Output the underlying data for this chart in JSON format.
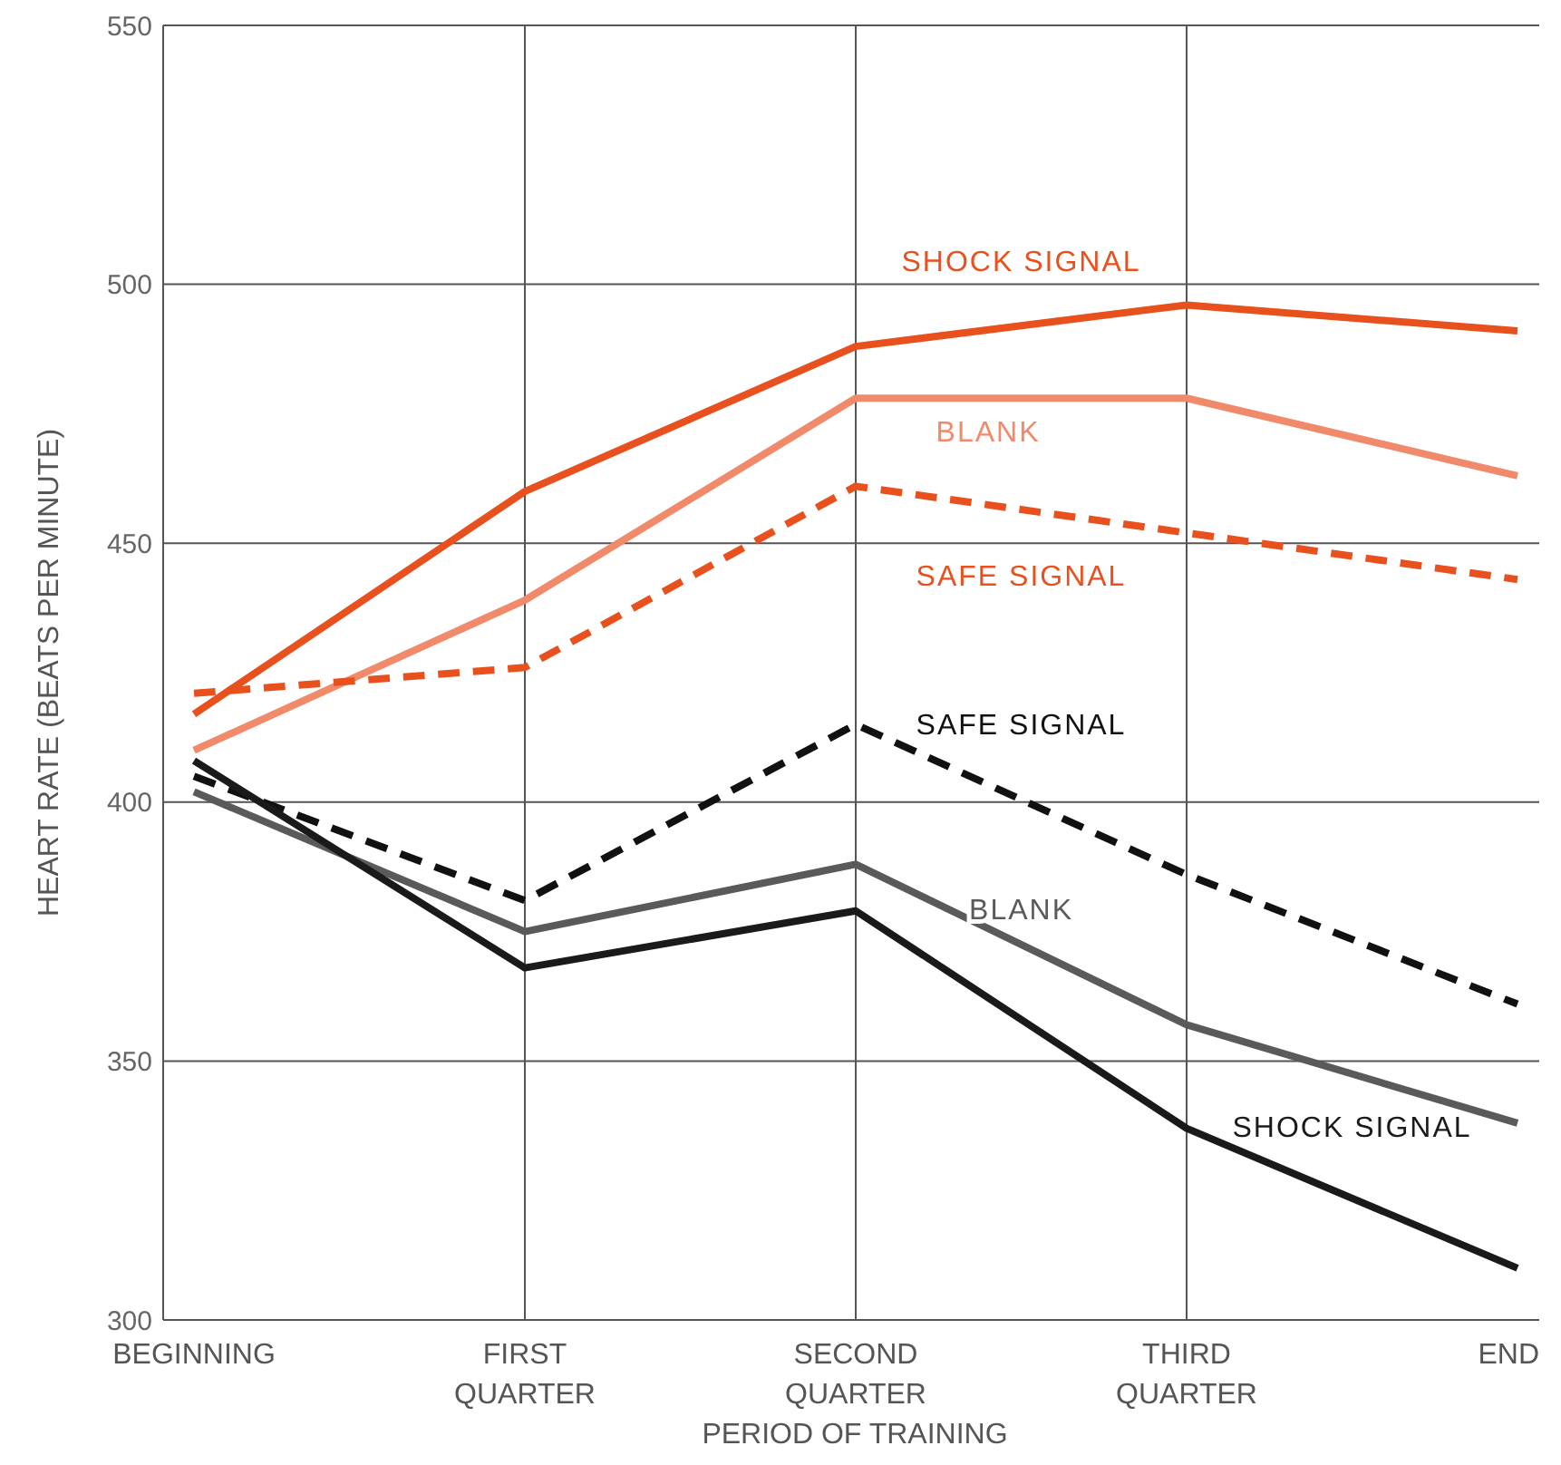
{
  "chart_data": {
    "type": "line",
    "xlabel": "PERIOD OF TRAINING",
    "ylabel": "HEART RATE (BEATS PER MINUTE)",
    "categories": [
      "BEGINNING",
      "FIRST\nQUARTER",
      "SECOND\nQUARTER",
      "THIRD\nQUARTER",
      "END"
    ],
    "series": [
      {
        "name": "SHOCK SIGNAL",
        "color": "#e8501e",
        "values": [
          417,
          460,
          488,
          496,
          491
        ]
      },
      {
        "name": "BLANK",
        "color": "#f08a6a",
        "values": [
          410,
          439,
          478,
          478,
          463
        ]
      },
      {
        "name": "SAFE SIGNAL",
        "color": "#e8501e",
        "line_style": "dashed",
        "values": [
          421,
          426,
          461,
          452,
          443
        ]
      },
      {
        "name": "SAFE SIGNAL",
        "color": "#111111",
        "line_style": "dashed",
        "values": [
          405,
          381,
          415,
          386,
          361
        ]
      },
      {
        "name": "BLANK",
        "color": "#5a5a5a",
        "values": [
          402,
          375,
          388,
          357,
          338
        ]
      },
      {
        "name": "SHOCK SIGNAL",
        "color": "#1a1a1a",
        "values": [
          408,
          368,
          379,
          337,
          310
        ]
      }
    ],
    "ylim": [
      300,
      550
    ],
    "yticks": [
      300,
      350,
      400,
      450,
      500,
      550
    ],
    "grid": true,
    "legend": false,
    "marker": "none",
    "line_style": "solid"
  }
}
